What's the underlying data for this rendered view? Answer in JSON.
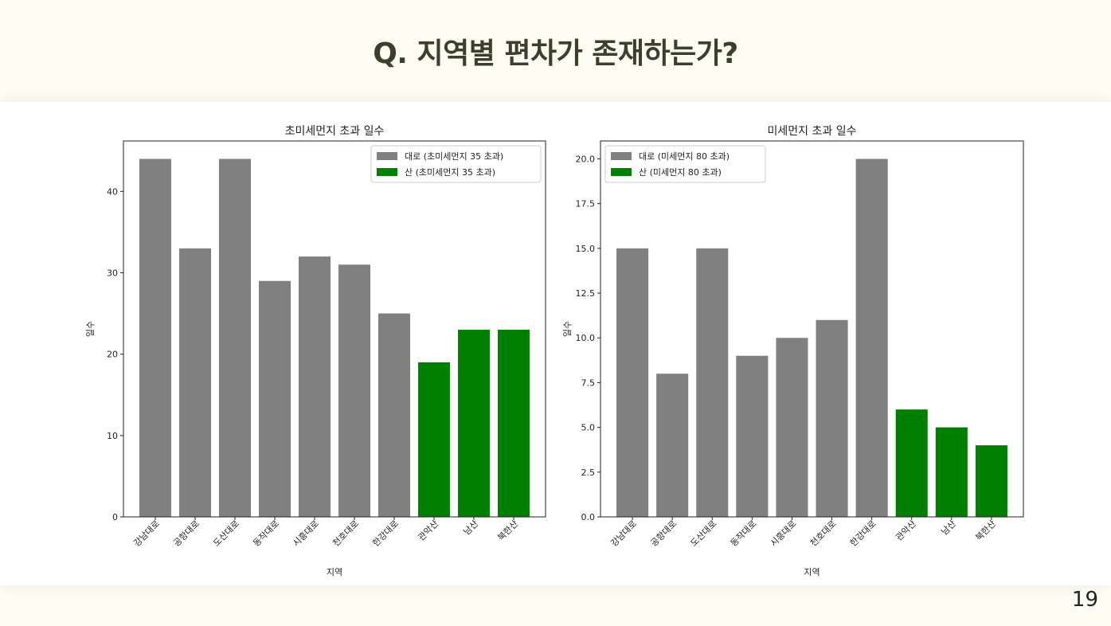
{
  "slide": {
    "title": "Q. 지역별 편차가 존재하는가?",
    "page_number": "19"
  },
  "colors": {
    "road": "#808080",
    "mountain": "#008000"
  },
  "chart_data": [
    {
      "type": "bar",
      "title": "초미세먼지 초과 일수",
      "xlabel": "지역",
      "ylabel": "일수",
      "categories": [
        "강남대로",
        "공항대로",
        "도산대로",
        "동작대로",
        "시흥대로",
        "천호대로",
        "한강대로",
        "관악산",
        "남산",
        "북한산"
      ],
      "values": [
        44,
        33,
        44,
        29,
        32,
        31,
        25,
        19,
        23,
        23
      ],
      "bar_groups": [
        "road",
        "road",
        "road",
        "road",
        "road",
        "road",
        "road",
        "mountain",
        "mountain",
        "mountain"
      ],
      "ylim": [
        0,
        46.2
      ],
      "yticks": [
        0,
        10,
        20,
        30,
        40
      ],
      "ytick_labels": [
        "0",
        "10",
        "20",
        "30",
        "40"
      ],
      "legend_position": "top-right",
      "legend": [
        {
          "label": "대로 (초미세먼지 35 초과)",
          "color": "#808080"
        },
        {
          "label": "산 (초미세먼지 35 초과)",
          "color": "#008000"
        }
      ]
    },
    {
      "type": "bar",
      "title": "미세먼지 초과 일수",
      "xlabel": "지역",
      "ylabel": "일수",
      "categories": [
        "강남대로",
        "공항대로",
        "도산대로",
        "동작대로",
        "시흥대로",
        "천호대로",
        "한강대로",
        "관악산",
        "남산",
        "북한산"
      ],
      "values": [
        15,
        8,
        15,
        9,
        10,
        11,
        20,
        6,
        5,
        4
      ],
      "bar_groups": [
        "road",
        "road",
        "road",
        "road",
        "road",
        "road",
        "road",
        "mountain",
        "mountain",
        "mountain"
      ],
      "ylim": [
        0,
        21
      ],
      "yticks": [
        0,
        2.5,
        5,
        7.5,
        10,
        12.5,
        15,
        17.5,
        20
      ],
      "ytick_labels": [
        "0.0",
        "2.5",
        "5.0",
        "7.5",
        "10.0",
        "12.5",
        "15.0",
        "17.5",
        "20.0"
      ],
      "legend_position": "top-left",
      "legend": [
        {
          "label": "대로 (미세먼지 80 초과)",
          "color": "#808080"
        },
        {
          "label": "산 (미세먼지 80 초과)",
          "color": "#008000"
        }
      ]
    }
  ]
}
